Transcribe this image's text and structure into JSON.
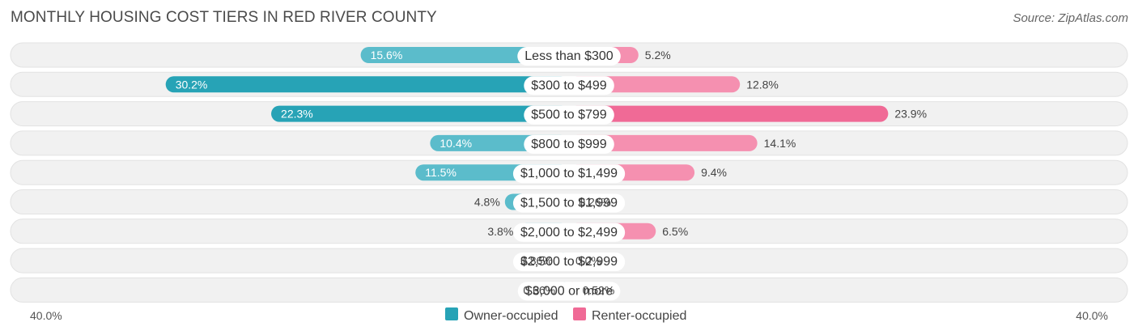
{
  "header": {
    "title": "MONTHLY HOUSING COST TIERS IN RED RIVER COUNTY",
    "source": "Source: ZipAtlas.com"
  },
  "chart_data": {
    "type": "bar",
    "orientation": "horizontal-diverging",
    "title": "MONTHLY HOUSING COST TIERS IN RED RIVER COUNTY",
    "categories": [
      "Less than $300",
      "$300 to $499",
      "$500 to $799",
      "$800 to $999",
      "$1,000 to $1,499",
      "$1,500 to $1,999",
      "$2,000 to $2,499",
      "$2,500 to $2,999",
      "$3,000 or more"
    ],
    "series": [
      {
        "name": "Owner-occupied",
        "values": [
          15.6,
          30.2,
          22.3,
          10.4,
          11.5,
          4.8,
          3.8,
          0.86,
          0.66
        ],
        "labels": [
          "15.6%",
          "30.2%",
          "22.3%",
          "10.4%",
          "11.5%",
          "4.8%",
          "3.8%",
          "0.86%",
          "0.66%"
        ],
        "color": "#5bbccb",
        "color_strong": "#27a3b6"
      },
      {
        "name": "Renter-occupied",
        "values": [
          5.2,
          12.8,
          23.9,
          14.1,
          9.4,
          0.26,
          6.5,
          0.0,
          0.52
        ],
        "labels": [
          "5.2%",
          "12.8%",
          "23.9%",
          "14.1%",
          "9.4%",
          "0.26%",
          "6.5%",
          "0.0%",
          "0.52%"
        ],
        "color": "#f590b0",
        "color_strong": "#f06a96"
      }
    ],
    "axis": {
      "min_label": "40.0%",
      "max_label": "40.0%",
      "max": 40
    },
    "legend": {
      "position": "bottom-center"
    }
  }
}
